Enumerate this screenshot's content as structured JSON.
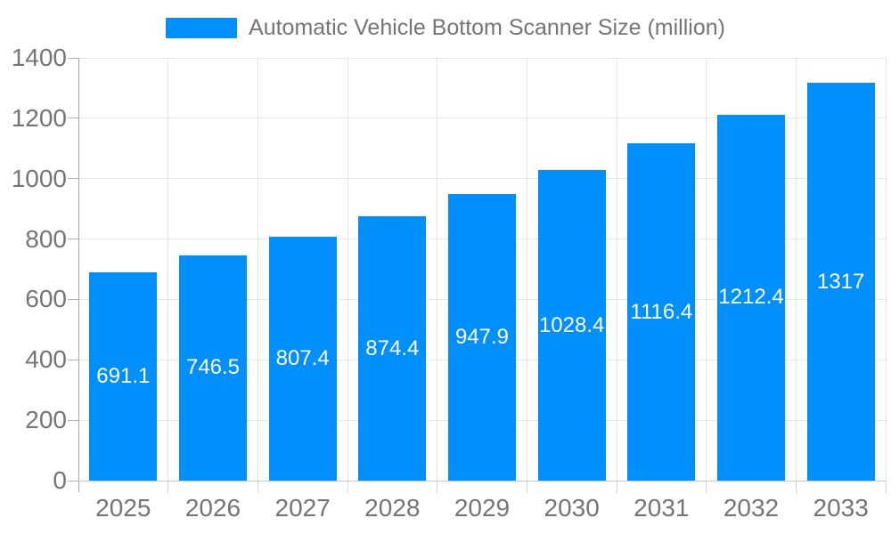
{
  "legend": {
    "swatch_color": "#008FFB",
    "label": "Automatic Vehicle Bottom Scanner Size (million)"
  },
  "chart_data": {
    "type": "bar",
    "title": "Automatic Vehicle Bottom Scanner Size (million)",
    "categories": [
      "2025",
      "2026",
      "2027",
      "2028",
      "2029",
      "2030",
      "2031",
      "2032",
      "2033"
    ],
    "series": [
      {
        "name": "Automatic Vehicle Bottom Scanner Size (million)",
        "values": [
          691.1,
          746.5,
          807.4,
          874.4,
          947.9,
          1028.4,
          1116.4,
          1212.4,
          1317
        ]
      }
    ],
    "value_labels": [
      "691.1",
      "746.5",
      "807.4",
      "874.4",
      "947.9",
      "1028.4",
      "1116.4",
      "1212.4",
      "1317"
    ],
    "xlabel": "",
    "ylabel": "",
    "ylim": [
      0,
      1400
    ],
    "yticks": [
      0,
      200,
      400,
      600,
      800,
      1000,
      1200,
      1400
    ],
    "grid": true,
    "legend_position": "top",
    "bar_color": "#008FFB",
    "bar_label_color": "#ffffff"
  },
  "colors": {
    "bar": "#008FFB",
    "grid_line": "#e6e6e6",
    "y_axis_line": "#a6a6a6",
    "x_axis_line": "#c9c9c9",
    "y_tick_mark": "#b3b3b3",
    "x_tick_mark": "#d4d4d4",
    "tick_text": "#757575",
    "legend_text": "#757575",
    "bar_label_text": "#ffffff",
    "background": "#ffffff"
  }
}
